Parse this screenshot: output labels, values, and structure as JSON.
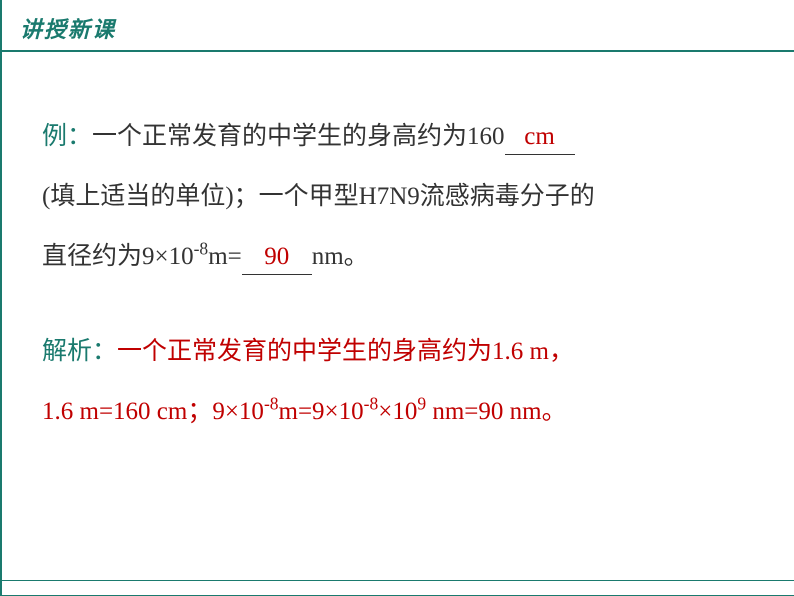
{
  "header": {
    "title": "讲授新课"
  },
  "example": {
    "label": "例：",
    "part1": "一个正常发育的中学生的身高约为160",
    "blank1": "cm",
    "part2": "(填上适当的单位)；一个甲型H7N9流感病毒分子的",
    "part3_prefix": "直径约为9×10",
    "part3_exp": "-8",
    "part3_suffix": "m=",
    "blank2": "90",
    "part4": "nm。"
  },
  "analysis": {
    "label": "解析：",
    "line1": "一个正常发育的中学生的身高约为1.6 m，",
    "line2_a": "1.6 m=160 cm；9×10",
    "line2_exp1": "-8",
    "line2_b": "m=9×10",
    "line2_exp2": "-8",
    "line2_c": "×10",
    "line2_exp3": "9",
    "line2_d": " nm=90 nm。"
  },
  "colors": {
    "teal": "#1a7a6e",
    "red": "#c00000",
    "text": "#333333",
    "background": "#ffffff"
  },
  "typography": {
    "header_fontsize": 22,
    "body_fontsize": 25,
    "line_height": 2.4
  }
}
